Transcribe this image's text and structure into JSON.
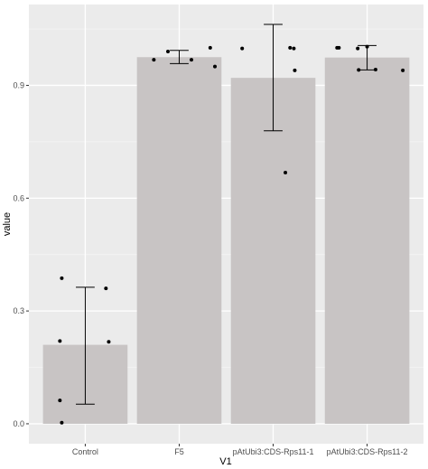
{
  "chart_data": {
    "type": "bar",
    "title": "",
    "xlabel": "V1",
    "ylabel": "value",
    "categories": [
      "Control",
      "F5",
      "pAtUbi3:CDS-Rps11-1",
      "pAtUbi3:CDS-Rps11-2"
    ],
    "values": [
      0.21,
      0.975,
      0.92,
      0.974
    ],
    "error_bars": [
      {
        "low": 0.052,
        "high": 0.363
      },
      {
        "low": 0.958,
        "high": 0.993
      },
      {
        "low": 0.779,
        "high": 1.062
      },
      {
        "low": 0.941,
        "high": 1.006
      }
    ],
    "points": [
      [
        {
          "jitter": -0.25,
          "value": 0.387
        },
        {
          "jitter": -0.27,
          "value": 0.22
        },
        {
          "jitter": -0.27,
          "value": 0.062
        },
        {
          "jitter": -0.25,
          "value": 0.003
        },
        {
          "jitter": 0.22,
          "value": 0.36
        },
        {
          "jitter": 0.25,
          "value": 0.218
        }
      ],
      [
        {
          "jitter": -0.27,
          "value": 0.968
        },
        {
          "jitter": -0.12,
          "value": 0.99
        },
        {
          "jitter": 0.13,
          "value": 0.968
        },
        {
          "jitter": 0.33,
          "value": 1.0
        },
        {
          "jitter": 0.38,
          "value": 0.95
        }
      ],
      [
        {
          "jitter": -0.33,
          "value": 0.998
        },
        {
          "jitter": 0.13,
          "value": 0.668
        },
        {
          "jitter": 0.18,
          "value": 1.0
        },
        {
          "jitter": 0.22,
          "value": 0.998
        },
        {
          "jitter": 0.23,
          "value": 0.94
        }
      ],
      [
        {
          "jitter": -0.32,
          "value": 1.0
        },
        {
          "jitter": -0.3,
          "value": 1.0
        },
        {
          "jitter": -0.1,
          "value": 0.998
        },
        {
          "jitter": 0.0,
          "value": 1.003
        },
        {
          "jitter": -0.09,
          "value": 0.941
        },
        {
          "jitter": 0.09,
          "value": 0.942
        },
        {
          "jitter": 0.38,
          "value": 0.94
        }
      ]
    ],
    "y_ticks": [
      0.0,
      0.3,
      0.6,
      0.9
    ],
    "y_tick_labels": [
      "0.0",
      "0.3",
      "0.6",
      "0.9"
    ],
    "ylim": [
      -0.053,
      1.115
    ],
    "grid": true,
    "legend": "none",
    "colors": {
      "panel": "#ebebeb",
      "grid_major": "#ffffff",
      "grid_minor": "#f5f5f5",
      "bar": "#c8c4c4",
      "point": "#000000",
      "errorbar": "#000000"
    }
  }
}
